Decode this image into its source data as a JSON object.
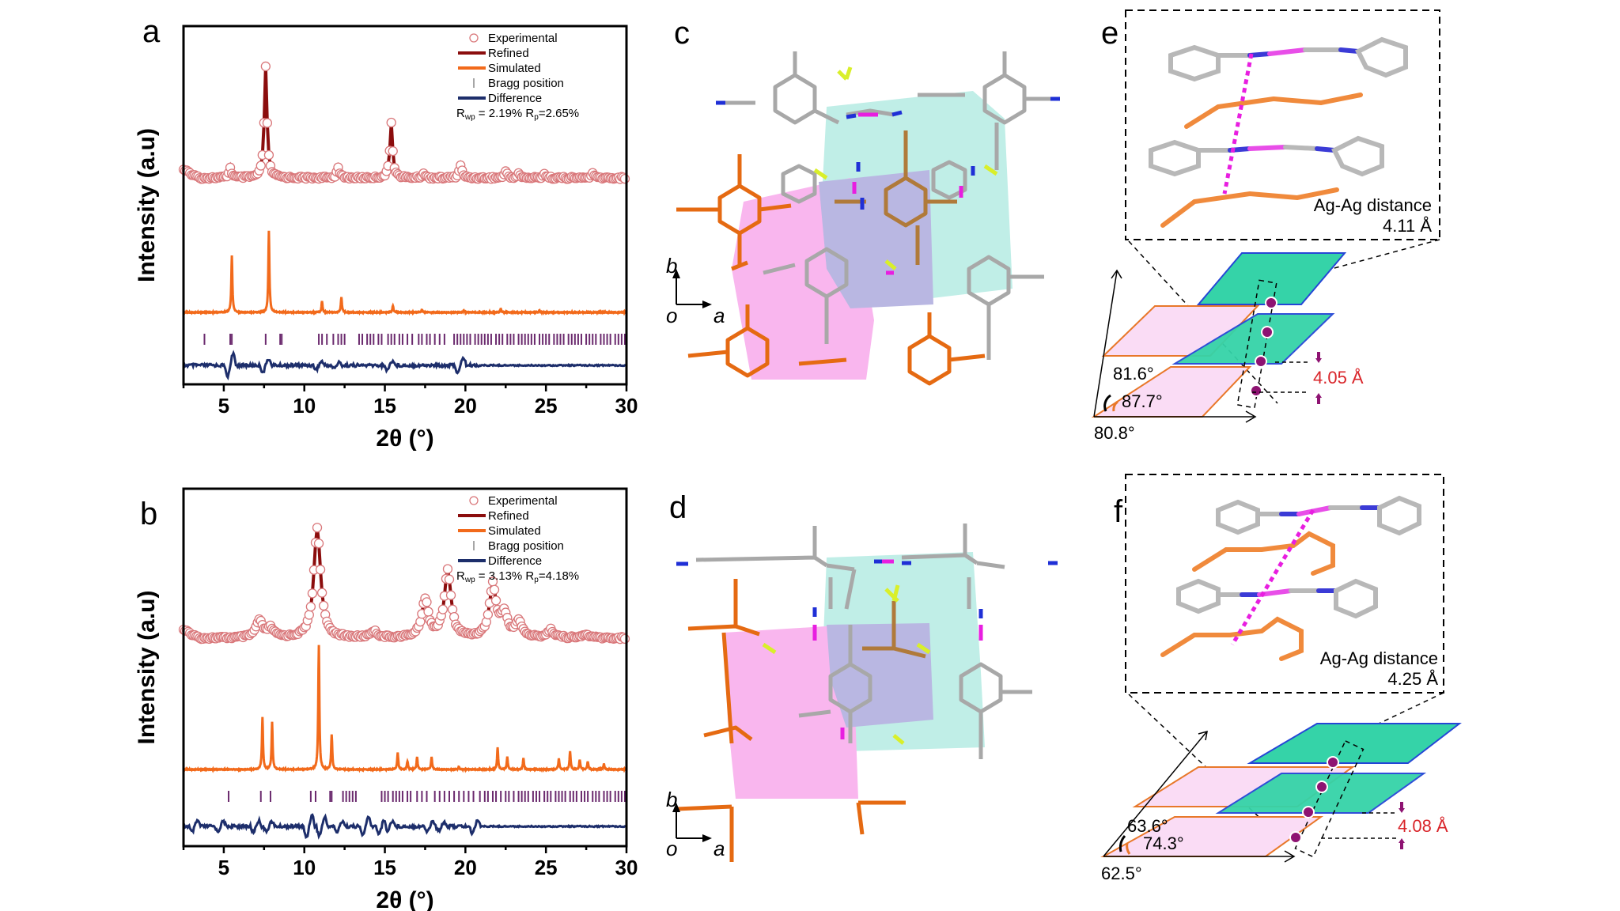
{
  "panel_labels": {
    "a": "a",
    "b": "b",
    "c": "c",
    "d": "d",
    "e": "e",
    "f": "f"
  },
  "legend_items": [
    "Experimental",
    "Refined",
    "Simulated",
    "Bragg position",
    "Difference"
  ],
  "colors": {
    "experimental": "#d9777a",
    "refined": "#8b0d0d",
    "simulated": "#f26a1b",
    "bragg": "#6b2a6e",
    "difference": "#1d2e6b",
    "pink_layer": "#fadcf5",
    "green_layer": "#35d3a8",
    "layer_edge_orange": "#e8782a",
    "layer_edge_blue": "#2546d6",
    "ag_dot": "#8e1372",
    "distance_red": "#d9252a"
  },
  "chart_data": [
    {
      "type": "line",
      "panel": "a",
      "xlabel": "2θ (°)",
      "ylabel": "Intensity (a.u)",
      "xlim": [
        2.5,
        30
      ],
      "xticks": [
        5,
        10,
        15,
        20,
        25,
        30
      ],
      "rfactors": {
        "Rwp": "2.19%",
        "Rp": "2.65%"
      },
      "legend": [
        "Experimental",
        "Refined",
        "Simulated",
        "Bragg position",
        "Difference"
      ],
      "legend_position": "top-right",
      "experimental_peaks": [
        {
          "x": 5.4,
          "h": 0.09
        },
        {
          "x": 7.6,
          "h": 1.0
        },
        {
          "x": 12.1,
          "h": 0.1
        },
        {
          "x": 15.4,
          "h": 0.5
        },
        {
          "x": 17.4,
          "h": 0.04
        },
        {
          "x": 19.7,
          "h": 0.12
        },
        {
          "x": 22.5,
          "h": 0.06
        },
        {
          "x": 23.3,
          "h": 0.04
        },
        {
          "x": 24.9,
          "h": 0.04
        },
        {
          "x": 27.9,
          "h": 0.04
        }
      ],
      "simulated_peaks": [
        {
          "x": 5.5,
          "h": 0.6
        },
        {
          "x": 7.8,
          "h": 0.86
        },
        {
          "x": 11.1,
          "h": 0.12
        },
        {
          "x": 12.3,
          "h": 0.16
        },
        {
          "x": 15.5,
          "h": 0.07
        },
        {
          "x": 17.3,
          "h": 0.03
        },
        {
          "x": 19.9,
          "h": 0.02
        },
        {
          "x": 22.2,
          "h": 0.04
        },
        {
          "x": 24.6,
          "h": 0.02
        }
      ],
      "bragg_positions": [
        3.8,
        5.4,
        5.5,
        7.6,
        8.5,
        8.6,
        10.9,
        11.1,
        11.4,
        11.8,
        12.1,
        12.3,
        12.5,
        13.4,
        13.6,
        13.9,
        14.1,
        14.3,
        14.6,
        14.8,
        15.2,
        15.4,
        15.6,
        15.9,
        16.1,
        16.4,
        16.7,
        17.1,
        17.3,
        17.6,
        17.8,
        18.1,
        18.4,
        18.7,
        19.3,
        19.5,
        19.7,
        19.9,
        20.1,
        20.3,
        20.6,
        20.8,
        21.0,
        21.2,
        21.4,
        21.6,
        21.9,
        22.1,
        22.3,
        22.6,
        22.8,
        23.0,
        23.3,
        23.5,
        23.7,
        23.9,
        24.1,
        24.3,
        24.6,
        24.8,
        25.0,
        25.2,
        25.5,
        25.7,
        25.9,
        26.1,
        26.4,
        26.6,
        26.8,
        27.0,
        27.2,
        27.5,
        27.7,
        27.9,
        28.1,
        28.4,
        28.6,
        28.8,
        29.0,
        29.3,
        29.5,
        29.7,
        29.9
      ],
      "difference_spikes": [
        {
          "x": 5.4,
          "a": 1.0
        },
        {
          "x": 7.6,
          "a": 0.6
        },
        {
          "x": 10.9,
          "a": 0.35
        },
        {
          "x": 12.0,
          "a": 0.25
        },
        {
          "x": 15.3,
          "a": 0.4
        },
        {
          "x": 19.7,
          "a": 0.7
        }
      ]
    },
    {
      "type": "line",
      "panel": "b",
      "xlabel": "2θ (°)",
      "ylabel": "Intensity (a.u)",
      "xlim": [
        2.5,
        30
      ],
      "xticks": [
        5,
        10,
        15,
        20,
        25,
        30
      ],
      "rfactors": {
        "Rwp": "3.13%",
        "Rp": "4.18%"
      },
      "legend": [
        "Experimental",
        "Refined",
        "Simulated",
        "Bragg position",
        "Difference"
      ],
      "legend_position": "top-right",
      "experimental_peaks": [
        {
          "x": 7.2,
          "h": 0.15
        },
        {
          "x": 7.9,
          "h": 0.08
        },
        {
          "x": 10.8,
          "h": 1.0
        },
        {
          "x": 14.3,
          "h": 0.06
        },
        {
          "x": 17.5,
          "h": 0.34
        },
        {
          "x": 18.9,
          "h": 0.6
        },
        {
          "x": 21.7,
          "h": 0.47
        },
        {
          "x": 22.4,
          "h": 0.2
        },
        {
          "x": 23.3,
          "h": 0.14
        },
        {
          "x": 25.3,
          "h": 0.07
        },
        {
          "x": 27.5,
          "h": 0.03
        }
      ],
      "simulated_peaks": [
        {
          "x": 7.4,
          "h": 0.38
        },
        {
          "x": 8.0,
          "h": 0.34
        },
        {
          "x": 10.9,
          "h": 0.9
        },
        {
          "x": 11.7,
          "h": 0.25
        },
        {
          "x": 15.8,
          "h": 0.12
        },
        {
          "x": 16.4,
          "h": 0.06
        },
        {
          "x": 17.0,
          "h": 0.09
        },
        {
          "x": 17.9,
          "h": 0.09
        },
        {
          "x": 19.6,
          "h": 0.02
        },
        {
          "x": 22.0,
          "h": 0.16
        },
        {
          "x": 22.6,
          "h": 0.09
        },
        {
          "x": 23.6,
          "h": 0.08
        },
        {
          "x": 25.8,
          "h": 0.08
        },
        {
          "x": 26.5,
          "h": 0.13
        },
        {
          "x": 27.1,
          "h": 0.07
        },
        {
          "x": 27.6,
          "h": 0.06
        },
        {
          "x": 28.6,
          "h": 0.04
        }
      ],
      "bragg_positions": [
        5.3,
        7.3,
        7.9,
        10.4,
        10.7,
        11.6,
        11.7,
        12.4,
        12.6,
        12.8,
        13.0,
        13.2,
        14.8,
        15.0,
        15.2,
        15.5,
        15.7,
        15.9,
        16.1,
        16.4,
        16.6,
        17.0,
        17.3,
        17.6,
        18.1,
        18.4,
        18.7,
        19.0,
        19.3,
        19.6,
        19.9,
        20.2,
        20.5,
        20.9,
        21.2,
        21.4,
        21.7,
        21.9,
        22.2,
        22.5,
        22.7,
        23.0,
        23.3,
        23.5,
        23.7,
        23.9,
        24.2,
        24.4,
        24.6,
        24.9,
        25.1,
        25.3,
        25.6,
        25.8,
        26.0,
        26.2,
        26.5,
        26.7,
        26.9,
        27.2,
        27.4,
        27.6,
        27.9,
        28.1,
        28.3,
        28.6,
        28.8,
        29.0,
        29.3,
        29.5,
        29.7,
        29.9
      ],
      "difference_spikes": [
        {
          "x": 3.2,
          "a": 0.5
        },
        {
          "x": 4.8,
          "a": 0.45
        },
        {
          "x": 7.0,
          "a": 0.5
        },
        {
          "x": 7.8,
          "a": 0.45
        },
        {
          "x": 10.3,
          "a": 1.0
        },
        {
          "x": 11.1,
          "a": 0.8
        },
        {
          "x": 12.2,
          "a": 0.5
        },
        {
          "x": 13.8,
          "a": 0.8
        },
        {
          "x": 14.8,
          "a": 0.6
        },
        {
          "x": 15.3,
          "a": 0.5
        },
        {
          "x": 17.8,
          "a": 0.45
        },
        {
          "x": 18.5,
          "a": 0.4
        },
        {
          "x": 20.6,
          "a": 0.6
        }
      ]
    }
  ],
  "panel_c": {
    "axis_b": "b",
    "axis_o": "o",
    "axis_a": "a"
  },
  "panel_d": {
    "axis_b": "b",
    "axis_o": "o",
    "axis_a": "a"
  },
  "panel_e": {
    "inset_title": "Ag-Ag distance",
    "inset_value": "4.11 Å",
    "angles": [
      "81.6°",
      "87.7°",
      "80.8°"
    ],
    "interlayer": "4.05 Å"
  },
  "panel_f": {
    "inset_title": "Ag-Ag distance",
    "inset_value": "4.25 Å",
    "angles": [
      "63.6°",
      "74.3°",
      "62.5°"
    ],
    "interlayer": "4.08 Å"
  }
}
